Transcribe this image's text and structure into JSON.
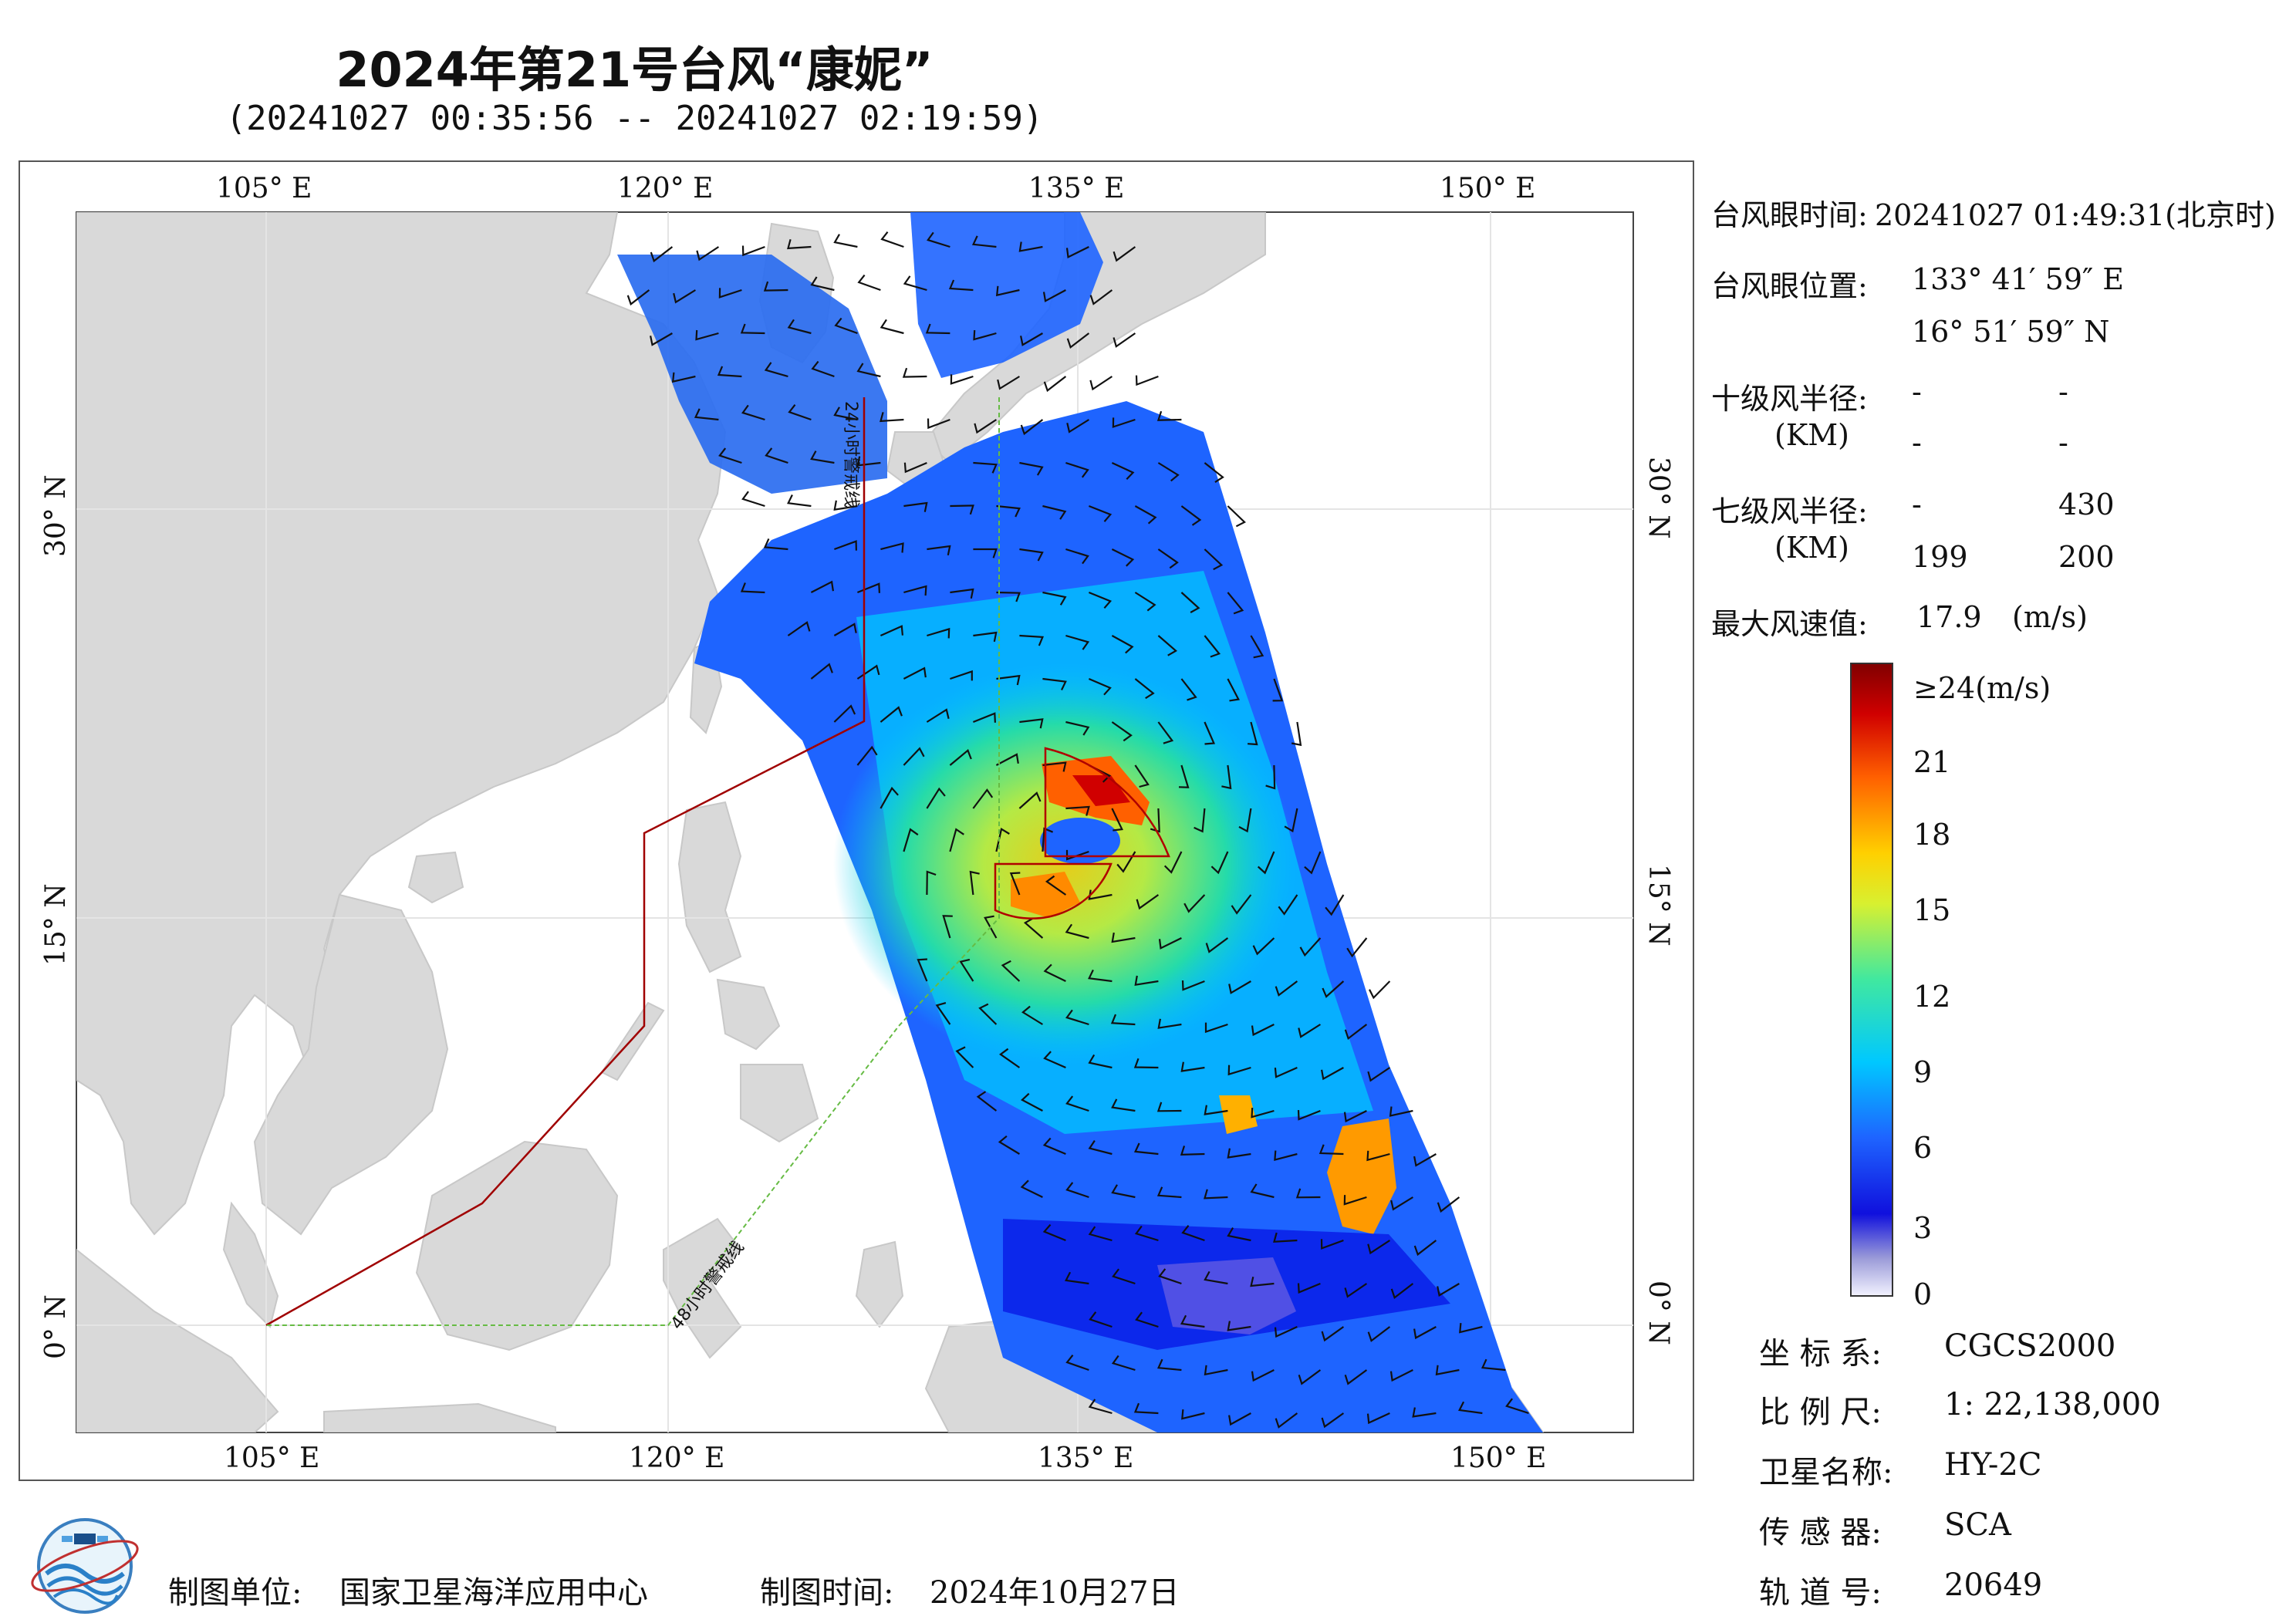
{
  "header": {
    "title": "2024年第21号台风“康妮”",
    "subtitle": "(20241027 00:35:56 -- 20241027 02:19:59)"
  },
  "map": {
    "lon_labels": [
      "105° E",
      "120° E",
      "135° E",
      "150° E"
    ],
    "lat_labels": [
      "30° N",
      "15° N",
      "0° N"
    ],
    "line_24h_label": "24小时警戒线",
    "line_48h_label": "48小时警戒线",
    "colors": {
      "land": "#d9d9d9",
      "ocean": "#ffffff",
      "warning_24h": "#a00000",
      "warning_48h": "#66bb44",
      "wind_radius": "#b00000"
    }
  },
  "info": {
    "eye_time_label": "台风眼时间:",
    "eye_time_value": "20241027 01:49:31(北京时)",
    "eye_pos_label": "台风眼位置:",
    "eye_lon": "133° 41′ 59″ E",
    "eye_lat": "16° 51′ 59″ N",
    "r10_label": "十级风半径:",
    "r10_unit": "(KM)",
    "r10_values": [
      "-",
      "-",
      "-",
      "-"
    ],
    "r7_label": "七级风半径:",
    "r7_unit": "(KM)",
    "r7_values": [
      "-",
      "430",
      "199",
      "200"
    ],
    "max_wind_label": "最大风速值:",
    "max_wind_value": "17.9",
    "max_wind_unit": "(m/s)"
  },
  "colorbar": {
    "ticks": [
      "≥24(m/s)",
      "21",
      "18",
      "15",
      "12",
      "9",
      "6",
      "3",
      "0"
    ],
    "colors": [
      "#f2f2ff",
      "#8080d0",
      "#0000dd",
      "#1e64ff",
      "#00c8ff",
      "#28e0a0",
      "#c8f030",
      "#ffd000",
      "#ff6000",
      "#d00000",
      "#800000"
    ]
  },
  "meta": {
    "crs_label": "坐 标 系:",
    "crs_value": "CGCS2000",
    "scale_label": "比 例 尺:",
    "scale_value": "1: 22,138,000",
    "satellite_label": "卫星名称:",
    "satellite_value": "HY-2C",
    "sensor_label": "传 感 器:",
    "sensor_value": "SCA",
    "orbit_label": "轨 道 号:",
    "orbit_value": "20649"
  },
  "footer": {
    "producer_label": "制图单位:",
    "producer_value": "国家卫星海洋应用中心",
    "date_label": "制图时间:",
    "date_value": "2024年10月27日"
  }
}
